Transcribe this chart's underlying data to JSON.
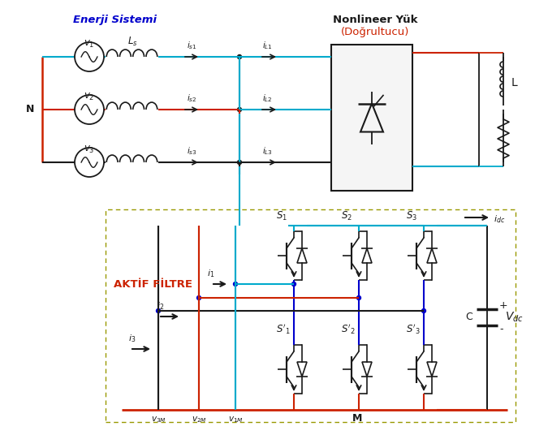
{
  "bg_color": "#ffffff",
  "black": "#1a1a1a",
  "red": "#cc2200",
  "blue": "#0000cc",
  "cyan": "#00aacc",
  "olive": "#999900",
  "label_enerji": "Enerji Sistemi",
  "label_nonlineer": "Nonlineer Yük",
  "label_dogrultucu": "(Doğrultucu)",
  "label_aktif": "AKTİF FİLTRE",
  "figw": 6.59,
  "figh": 5.36,
  "dpi": 100
}
